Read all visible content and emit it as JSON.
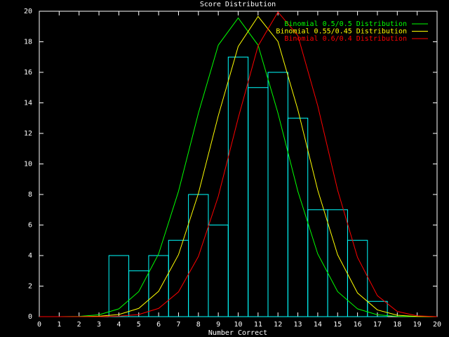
{
  "chart_data": {
    "type": "histogram",
    "title": "Score Distribution",
    "x_label": "Number Correct",
    "bins": [
      3.5,
      4.5,
      5.5,
      6.5,
      7.5,
      8.5,
      9.5,
      10.5,
      11.5,
      12.5,
      13.5,
      14.5,
      15.5,
      16.5,
      17.5
    ],
    "values": [
      4,
      3,
      4,
      5,
      8,
      6,
      17,
      15,
      16,
      13,
      7,
      7,
      5,
      1
    ],
    "color": "#00ffff",
    "xlim": [
      0,
      20
    ],
    "ylim": [
      0,
      20
    ],
    "xticks": [
      0,
      1,
      2,
      3,
      4,
      5,
      6,
      7,
      8,
      9,
      10,
      11,
      12,
      13,
      14,
      15,
      16,
      17,
      18,
      19,
      20
    ],
    "yticks": [
      0,
      2,
      4,
      6,
      8,
      10,
      12,
      14,
      16,
      18,
      20
    ],
    "legend": "top-right",
    "series": [
      {
        "name": "Binomial 0.5/0.5 Distribution",
        "color": "#00ff00",
        "type": "line",
        "x": [
          0,
          1,
          2,
          3,
          4,
          5,
          6,
          7,
          8,
          9,
          10,
          11,
          12,
          13,
          14,
          15,
          16,
          17,
          18,
          19,
          20
        ],
        "values": [
          0,
          0,
          0.02,
          0.12,
          0.51,
          1.64,
          4.11,
          8.21,
          13.33,
          17.78,
          19.56,
          17.78,
          13.33,
          8.21,
          4.11,
          1.64,
          0.51,
          0.12,
          0.02,
          0,
          0
        ]
      },
      {
        "name": "Binomial 0.55/0.45 Distribution",
        "color": "#ffff00",
        "type": "line",
        "x": [
          0,
          1,
          2,
          3,
          4,
          5,
          6,
          7,
          8,
          9,
          10,
          11,
          12,
          13,
          14,
          15,
          16,
          17,
          18,
          19,
          20
        ],
        "values": [
          0,
          0,
          0,
          0.03,
          0.14,
          0.54,
          1.66,
          4.06,
          8.07,
          13.16,
          17.69,
          19.66,
          18.02,
          13.55,
          8.28,
          4.05,
          1.55,
          0.44,
          0.09,
          0.01,
          0
        ]
      },
      {
        "name": "Binomial 0.6/0.4 Distribution",
        "color": "#ff0000",
        "type": "line",
        "x": [
          0,
          1,
          2,
          3,
          4,
          5,
          6,
          7,
          8,
          9,
          10,
          11,
          12,
          13,
          14,
          15,
          16,
          17,
          18,
          19,
          20
        ],
        "values": [
          0,
          0,
          0,
          0,
          0.03,
          0.14,
          0.54,
          1.62,
          3.94,
          7.88,
          13.0,
          17.73,
          19.95,
          18.41,
          13.81,
          8.28,
          3.88,
          1.37,
          0.34,
          0.05,
          0
        ]
      }
    ]
  }
}
